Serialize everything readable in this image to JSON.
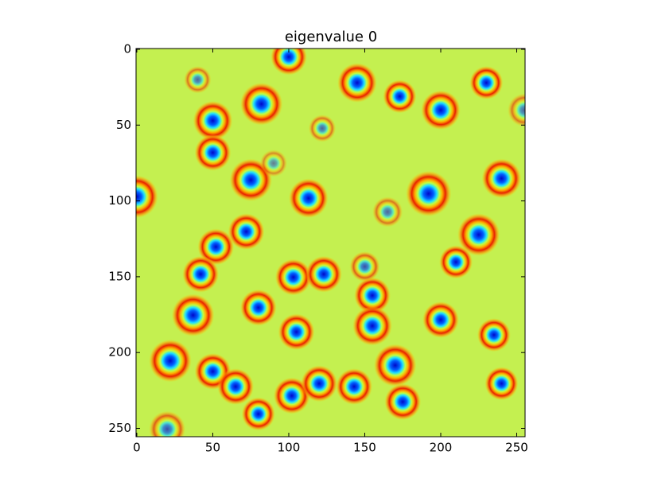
{
  "chart_data": {
    "type": "image",
    "title": "eigenvalue 0",
    "xlim": [
      -0.5,
      255.5
    ],
    "ylim": [
      255.5,
      -0.5
    ],
    "xticks": [
      0,
      50,
      100,
      150,
      200,
      250
    ],
    "yticks": [
      0,
      50,
      100,
      150,
      200,
      250
    ]
  }
}
